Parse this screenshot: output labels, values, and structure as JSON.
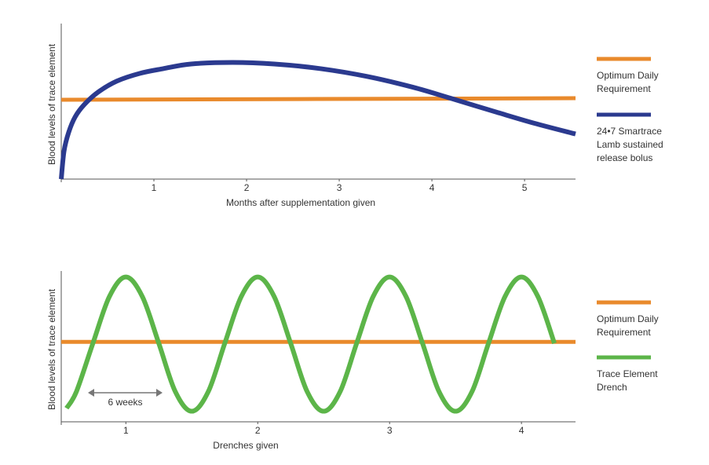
{
  "chart_data": [
    {
      "type": "line",
      "x_label": "Months after supplementation given",
      "y_label": "Blood levels of trace element",
      "xlim": [
        0,
        5.55
      ],
      "xticks": [
        1,
        2,
        3,
        4,
        5
      ],
      "ylim": [
        0,
        10
      ],
      "legend": "right",
      "series": [
        {
          "name": "Optimum Daily Requirement",
          "color": "#e98a2c",
          "x": [
            0,
            5.55
          ],
          "values": [
            5.1,
            5.2
          ]
        },
        {
          "name": "24•7 Smartrace Lamb sustained release bolus",
          "color": "#2b3a8f",
          "x": [
            0,
            0.03,
            0.08,
            0.15,
            0.25,
            0.4,
            0.6,
            0.85,
            1.1,
            1.4,
            1.85,
            2.3,
            2.8,
            3.3,
            3.8,
            4.2,
            4.7,
            5.1,
            5.55
          ],
          "values": [
            0,
            1.8,
            3.0,
            4.0,
            4.8,
            5.6,
            6.3,
            6.8,
            7.1,
            7.4,
            7.5,
            7.4,
            7.1,
            6.6,
            5.9,
            5.2,
            4.3,
            3.6,
            2.9
          ]
        }
      ]
    },
    {
      "type": "line",
      "x_label": "Drenches given",
      "y_label": "Blood levels of trace element",
      "xlim": [
        0.51,
        4.41
      ],
      "xticks": [
        1,
        2,
        3,
        4
      ],
      "ylim": [
        0,
        10
      ],
      "legend": "right",
      "annotation": "6 weeks",
      "series": [
        {
          "name": "Optimum Daily Requirement",
          "color": "#e98a2c",
          "x": [
            0.51,
            4.41
          ],
          "values": [
            5.3,
            5.3
          ]
        },
        {
          "name": "Trace Element Drench",
          "color": "#5cb549",
          "x": [
            0.55,
            0.625,
            0.75,
            0.875,
            1,
            1.125,
            1.25,
            1.375,
            1.5,
            1.625,
            1.75,
            1.875,
            2,
            2.125,
            2.25,
            2.375,
            2.5,
            2.625,
            2.75,
            2.875,
            3,
            3.125,
            3.25,
            3.375,
            3.5,
            3.625,
            3.75,
            3.875,
            4,
            4.125,
            4.25
          ],
          "values": [
            0.9,
            2.0,
            5.2,
            8.3,
            9.6,
            8.3,
            5.2,
            2.0,
            0.7,
            2.0,
            5.2,
            8.3,
            9.6,
            8.3,
            5.2,
            2.0,
            0.7,
            2.0,
            5.2,
            8.3,
            9.6,
            8.3,
            5.2,
            2.0,
            0.7,
            2.0,
            5.2,
            8.3,
            9.6,
            8.3,
            5.2
          ]
        }
      ]
    }
  ]
}
